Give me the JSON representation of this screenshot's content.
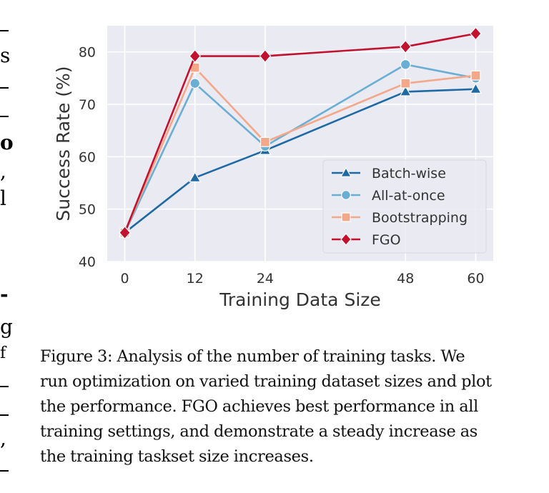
{
  "chart_data": {
    "type": "line",
    "title": "",
    "xlabel": "Training Data Size",
    "ylabel": "Success Rate (%)",
    "x": [
      0,
      12,
      24,
      48,
      60
    ],
    "x_tick_labels": [
      "0",
      "12",
      "24",
      "48",
      "60"
    ],
    "xlim": [
      -3,
      63
    ],
    "ylim": [
      40,
      85
    ],
    "y_ticks": [
      40,
      50,
      60,
      70,
      80
    ],
    "y_tick_labels": [
      "40",
      "50",
      "60",
      "70",
      "80"
    ],
    "grid": true,
    "legend_position": "lower-right",
    "series": [
      {
        "name": "Batch-wise",
        "color": "#1f6aa5",
        "marker": "triangle",
        "values": [
          45.5,
          56.0,
          61.2,
          72.4,
          72.9
        ]
      },
      {
        "name": "All-at-once",
        "color": "#6aaed3",
        "marker": "circle",
        "values": [
          45.5,
          74.0,
          62.0,
          77.6,
          75.0
        ]
      },
      {
        "name": "Bootstrapping",
        "color": "#f3a889",
        "marker": "square",
        "values": [
          45.5,
          77.0,
          62.8,
          74.0,
          75.5
        ]
      },
      {
        "name": "FGO",
        "color": "#c1122f",
        "marker": "diamond",
        "values": [
          45.5,
          79.2,
          79.2,
          81.0,
          83.5
        ]
      }
    ]
  },
  "caption_lines": [
    "Figure 3: Analysis of the number of training tasks. We",
    "run optimization on varied training dataset sizes and plot",
    "the performance. FGO achieves best performance in all",
    "training settings, and demonstrate a steady increase as",
    "the training taskset size increases."
  ],
  "edge_fragments": [
    "s",
    "o",
    ",",
    "l",
    "-",
    "g",
    "f",
    ","
  ]
}
